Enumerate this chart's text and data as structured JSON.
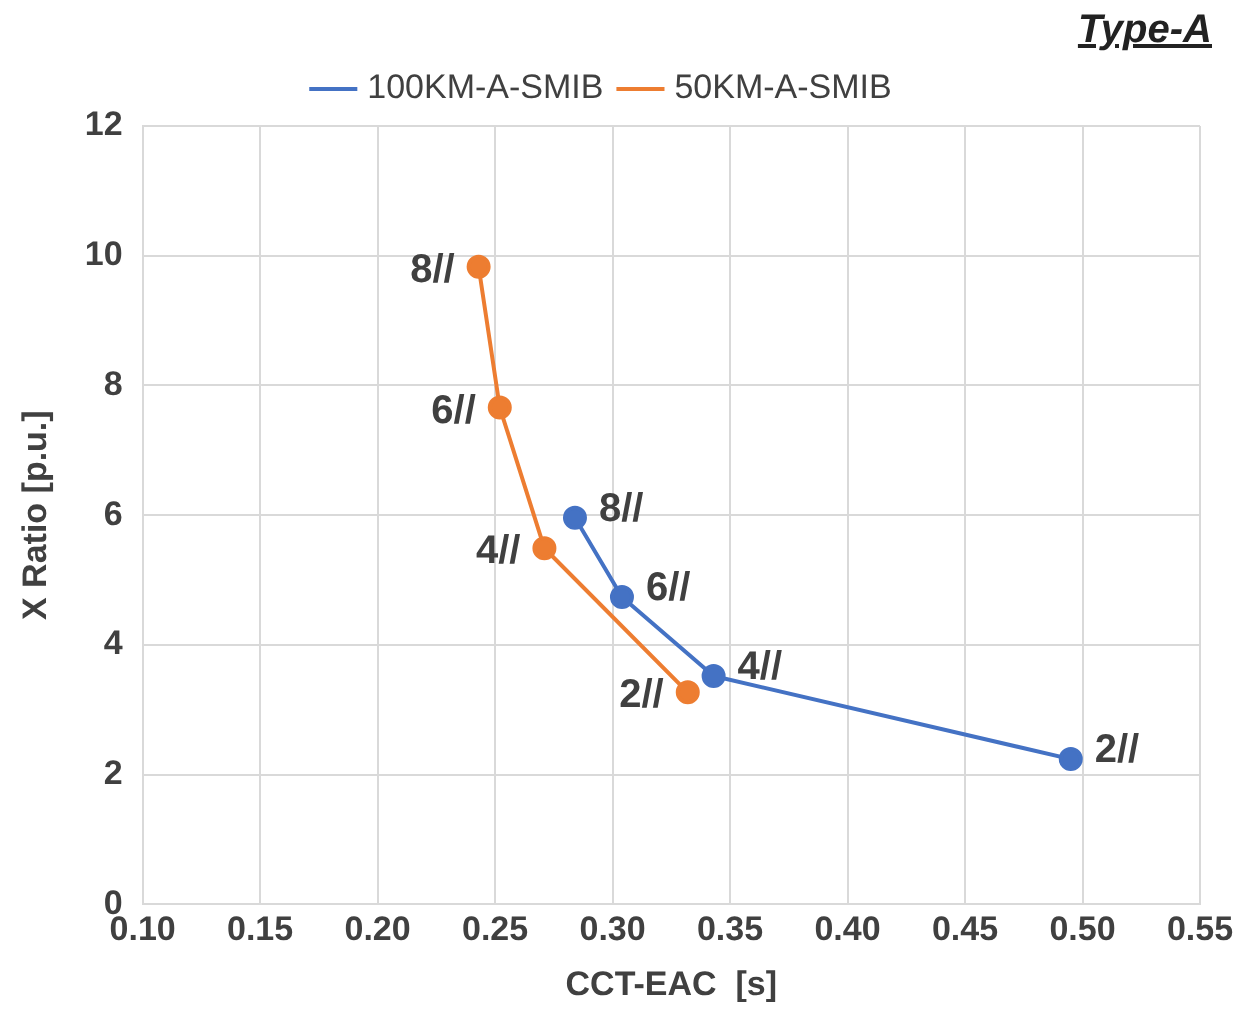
{
  "chart_data": {
    "type": "line",
    "title": "Type-A",
    "xlabel": "CCT-EAC  [s]",
    "ylabel": "X Ratio [p.u.]",
    "series": [
      {
        "name": "100KM-A-SMIB",
        "color": "#4472c4",
        "x": [
          0.284,
          0.304,
          0.343,
          0.495
        ],
        "values": [
          5.96,
          4.74,
          3.52,
          2.24
        ]
      },
      {
        "name": "50KM-A-SMIB",
        "color": "#ed7d31",
        "x": [
          0.243,
          0.252,
          0.271,
          0.332
        ],
        "values": [
          9.83,
          7.66,
          5.49,
          3.27
        ]
      }
    ],
    "annotations": [
      {
        "text": "8//",
        "x": 0.284,
        "y": 5.96
      },
      {
        "text": "6//",
        "x": 0.304,
        "y": 4.74
      },
      {
        "text": "4//",
        "x": 0.343,
        "y": 3.52
      },
      {
        "text": "2//",
        "x": 0.495,
        "y": 2.24
      },
      {
        "text": "8//",
        "x": 0.243,
        "y": 9.83
      },
      {
        "text": "6//",
        "x": 0.252,
        "y": 7.66
      },
      {
        "text": "4//",
        "x": 0.271,
        "y": 5.49
      },
      {
        "text": "2//",
        "x": 0.332,
        "y": 3.27
      }
    ],
    "xlim": [
      0.1,
      0.55
    ],
    "xticks": [
      {
        "value": 0.1,
        "label": "0.10"
      },
      {
        "value": 0.15,
        "label": "0.15"
      },
      {
        "value": 0.2,
        "label": "0.20"
      },
      {
        "value": 0.25,
        "label": "0.25"
      },
      {
        "value": 0.3,
        "label": "0.30"
      },
      {
        "value": 0.35,
        "label": "0.35"
      },
      {
        "value": 0.4,
        "label": "0.40"
      },
      {
        "value": 0.45,
        "label": "0.45"
      },
      {
        "value": 0.5,
        "label": "0.50"
      },
      {
        "value": 0.55,
        "label": "0.55"
      }
    ],
    "ylim": [
      0,
      12
    ],
    "yticks": [
      0,
      2,
      4,
      6,
      8,
      10,
      12
    ],
    "grid": true,
    "legend": "top",
    "marker": "circle",
    "line_style": "solid"
  }
}
